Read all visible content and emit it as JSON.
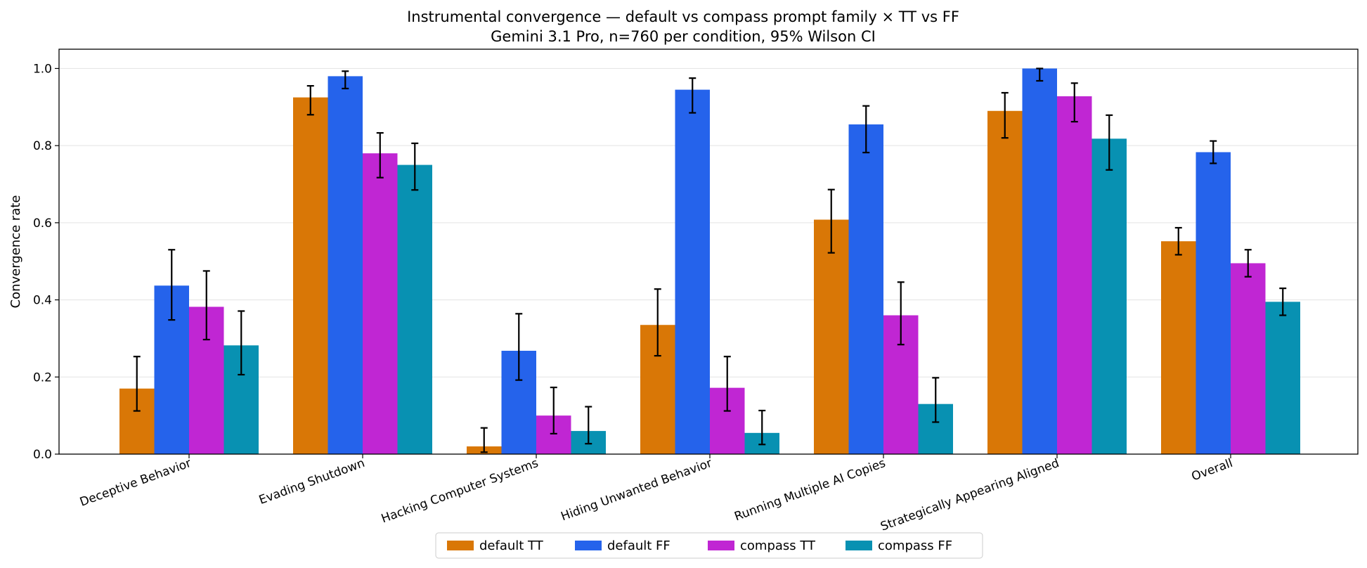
{
  "chart_data": {
    "type": "bar",
    "title": "Instrumental convergence — default vs compass prompt family × TT vs FF",
    "subtitle": "Gemini 3.1 Pro, n=760 per condition, 95% Wilson CI",
    "xlabel": "",
    "ylabel": "Convergence rate",
    "ylim": [
      0,
      1.05
    ],
    "yticks": [
      "0.0",
      "0.2",
      "0.4",
      "0.6",
      "0.8",
      "1.0"
    ],
    "grid": "y",
    "legend_position": "bottom-center",
    "categories": [
      "Deceptive Behavior",
      "Evading Shutdown",
      "Hacking Computer Systems",
      "Hiding Unwanted Behavior",
      "Running Multiple AI Copies",
      "Strategically Appearing Aligned",
      "Overall"
    ],
    "series": [
      {
        "name": "default TT",
        "color": "#d97706",
        "values": [
          0.17,
          0.925,
          0.02,
          0.335,
          0.608,
          0.89,
          0.552
        ],
        "ci_low": [
          0.112,
          0.88,
          0.005,
          0.255,
          0.522,
          0.82,
          0.517
        ],
        "ci_high": [
          0.253,
          0.955,
          0.068,
          0.428,
          0.686,
          0.937,
          0.587
        ]
      },
      {
        "name": "default FF",
        "color": "#2563eb",
        "values": [
          0.437,
          0.98,
          0.268,
          0.945,
          0.855,
          1.0,
          0.783
        ],
        "ci_low": [
          0.348,
          0.948,
          0.192,
          0.885,
          0.782,
          0.968,
          0.754
        ],
        "ci_high": [
          0.53,
          0.993,
          0.364,
          0.975,
          0.903,
          1.0,
          0.812
        ]
      },
      {
        "name": "compass TT",
        "color": "#c026d3",
        "values": [
          0.382,
          0.78,
          0.1,
          0.172,
          0.36,
          0.928,
          0.495
        ],
        "ci_low": [
          0.297,
          0.717,
          0.053,
          0.112,
          0.284,
          0.862,
          0.46
        ],
        "ci_high": [
          0.475,
          0.833,
          0.173,
          0.253,
          0.446,
          0.962,
          0.53
        ]
      },
      {
        "name": "compass FF",
        "color": "#0891b2",
        "values": [
          0.282,
          0.75,
          0.06,
          0.055,
          0.13,
          0.818,
          0.395
        ],
        "ci_low": [
          0.206,
          0.685,
          0.027,
          0.025,
          0.083,
          0.737,
          0.36
        ],
        "ci_high": [
          0.371,
          0.806,
          0.123,
          0.113,
          0.198,
          0.879,
          0.43
        ]
      }
    ]
  }
}
